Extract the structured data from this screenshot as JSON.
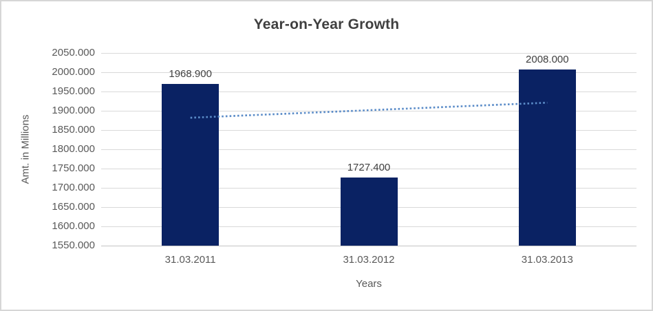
{
  "chart_data": {
    "type": "bar",
    "title": "Year-on-Year Growth",
    "xlabel": "Years",
    "ylabel": "Amt. in Millions",
    "categories": [
      "31.03.2011",
      "31.03.2012",
      "31.03.2013"
    ],
    "values": [
      1968.9,
      1727.4,
      2008.0
    ],
    "data_labels": [
      "1968.900",
      "1727.400",
      "2008.000"
    ],
    "ylim": [
      1550,
      2050
    ],
    "y_tick_step": 50,
    "y_tick_labels": [
      "2050.000",
      "2000.000",
      "1950.000",
      "1900.000",
      "1850.000",
      "1800.000",
      "1750.000",
      "1700.000",
      "1650.000",
      "1600.000",
      "1550.000"
    ],
    "grid": true,
    "legend": false,
    "trendline": {
      "type": "linear",
      "style": "dotted",
      "start_value": 1881.9,
      "end_value": 1921.0
    },
    "colors": {
      "bar": "#0a2263",
      "trendline": "#5b8cc8",
      "gridline": "#d9d9d9",
      "axis_line": "#c3c3c3",
      "title_text": "#3f3f3f",
      "data_label_text": "#404040",
      "tick_text": "#595959",
      "background": "#ffffff",
      "border": "#d6d6d6"
    }
  }
}
